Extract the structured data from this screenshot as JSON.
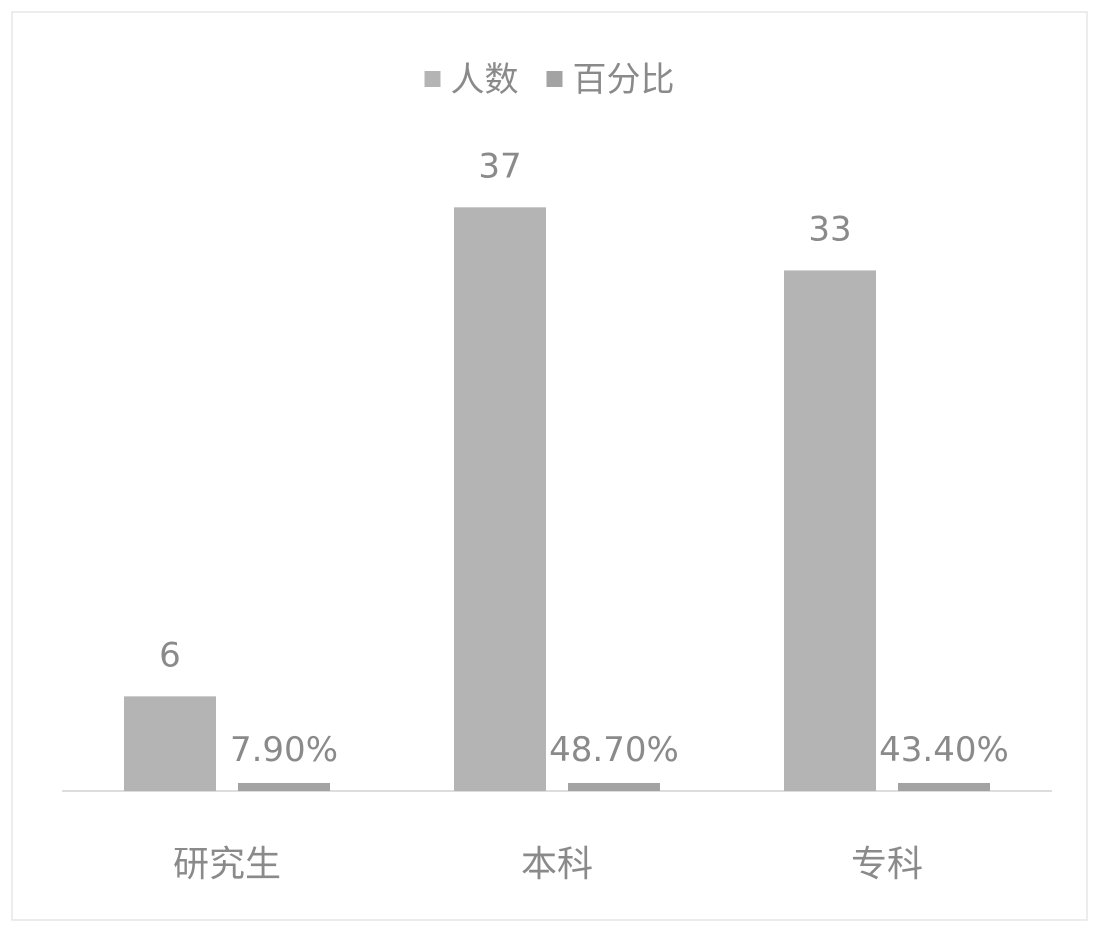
{
  "chart_data": {
    "type": "bar",
    "categories": [
      "研究生",
      "本科",
      "专科"
    ],
    "series": [
      {
        "name": "人数",
        "values": [
          6,
          37,
          33
        ],
        "labels": [
          "6",
          "37",
          "33"
        ]
      },
      {
        "name": "百分比",
        "values": [
          0.079,
          0.487,
          0.434
        ],
        "labels": [
          "7.90%",
          "48.70%",
          "43.40%"
        ]
      }
    ],
    "title": "",
    "xlabel": "",
    "ylabel": "",
    "ylim": [
      0,
      40
    ],
    "grid": false,
    "legend": "top-center",
    "colors": {
      "series": [
        "#b4b4b4",
        "#a3a3a3"
      ],
      "text": "#8a8a8a",
      "axis": "#d2d2d2",
      "frame": "#e6e6e6"
    }
  }
}
